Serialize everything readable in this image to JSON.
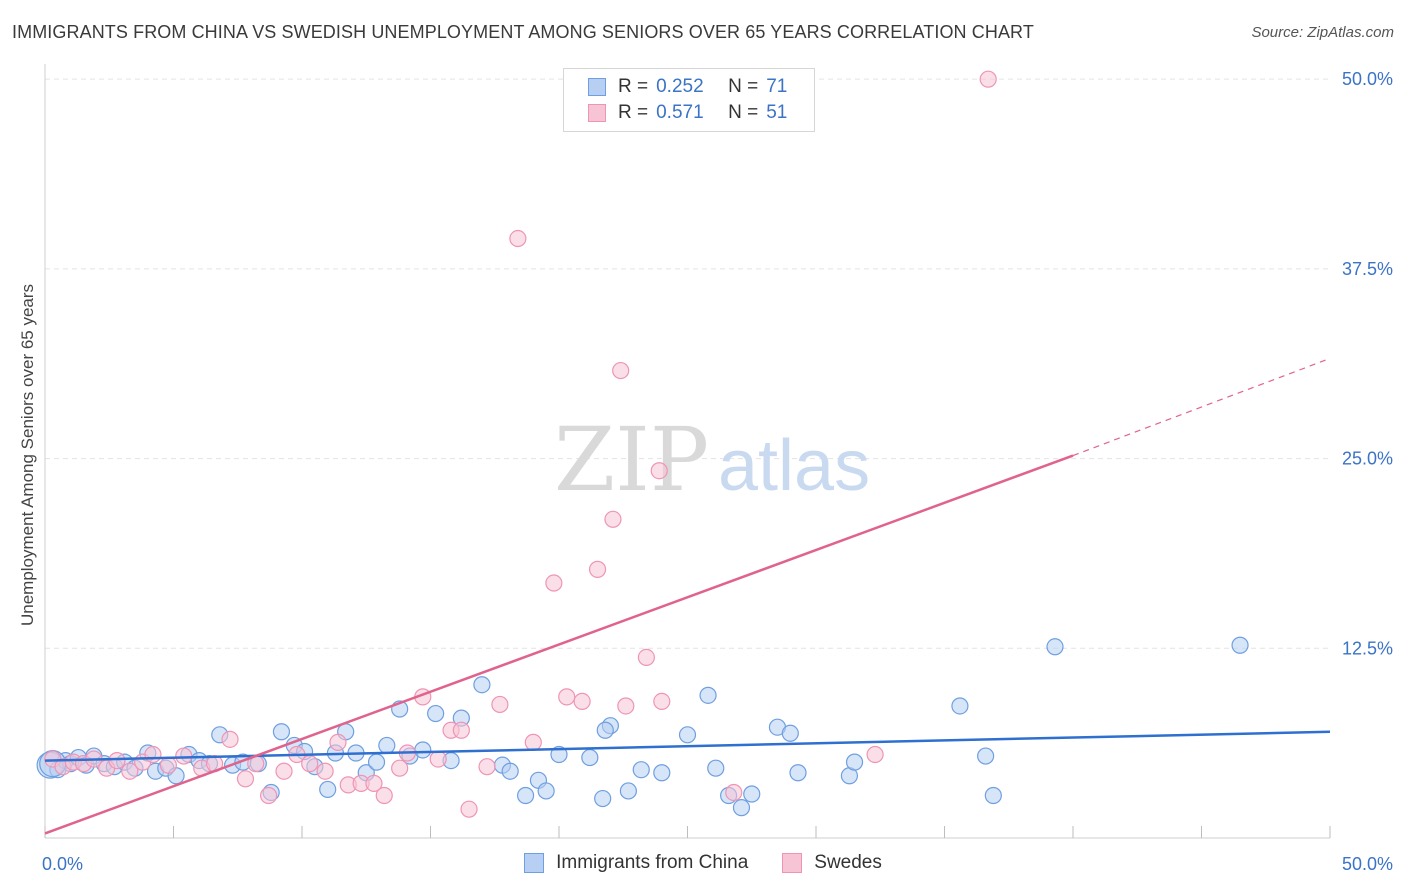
{
  "title": "IMMIGRANTS FROM CHINA VS SWEDISH UNEMPLOYMENT AMONG SENIORS OVER 65 YEARS CORRELATION CHART",
  "source": "Source: ZipAtlas.com",
  "watermark": {
    "zip": "ZIP",
    "atlas": "atlas"
  },
  "colors": {
    "blue": "#6f9fe0",
    "blue_fill": "#b7cff2",
    "blue_line": "#2f6fd0",
    "pink": "#ee95b5",
    "pink_fill": "#f7c4d5",
    "pink_line": "#e0638e",
    "tick": "#3b73c6",
    "grid": "#e3e3e3"
  },
  "legend": {
    "rows": [
      {
        "r_label": "R =",
        "r_value": "0.252",
        "n_label": "N =",
        "n_value": "71",
        "series": "blue"
      },
      {
        "r_label": "R =",
        "r_value": "0.571",
        "n_label": "N =",
        "n_value": "51",
        "series": "pink"
      }
    ]
  },
  "chart_data": {
    "type": "scatter",
    "title": "IMMIGRANTS FROM CHINA VS SWEDISH UNEMPLOYMENT AMONG SENIORS OVER 65 YEARS CORRELATION CHART",
    "xlabel": "",
    "ylabel": "Unemployment Among Seniors over 65 years",
    "xlim": [
      0,
      50
    ],
    "ylim": [
      0,
      51
    ],
    "x_tick_labels": [
      "0.0%",
      "50.0%"
    ],
    "y_ticks": [
      12.5,
      25,
      37.5,
      50
    ],
    "y_tick_labels": [
      "12.5%",
      "25.0%",
      "37.5%",
      "50.0%"
    ],
    "grid": true,
    "legend_position": "bottom-center",
    "series": [
      {
        "name": "Immigrants from China",
        "color": "blue",
        "trend": {
          "x": [
            0,
            50
          ],
          "y": [
            5.1,
            7.0
          ],
          "dashed_extension": false
        },
        "points": [
          [
            0.2,
            4.8
          ],
          [
            0.5,
            4.5
          ],
          [
            0.8,
            5.1
          ],
          [
            1.0,
            4.9
          ],
          [
            1.3,
            5.3
          ],
          [
            1.6,
            4.8
          ],
          [
            1.9,
            5.4
          ],
          [
            2.3,
            4.9
          ],
          [
            2.7,
            4.7
          ],
          [
            3.1,
            5.0
          ],
          [
            3.5,
            4.6
          ],
          [
            4.0,
            5.6
          ],
          [
            4.3,
            4.4
          ],
          [
            4.7,
            4.6
          ],
          [
            5.1,
            4.1
          ],
          [
            5.6,
            5.5
          ],
          [
            6.0,
            5.1
          ],
          [
            6.4,
            4.9
          ],
          [
            6.8,
            6.8
          ],
          [
            7.3,
            4.8
          ],
          [
            7.7,
            5.0
          ],
          [
            8.3,
            4.9
          ],
          [
            8.8,
            3.0
          ],
          [
            9.2,
            7.0
          ],
          [
            9.7,
            6.1
          ],
          [
            10.1,
            5.7
          ],
          [
            10.5,
            4.7
          ],
          [
            11.0,
            3.2
          ],
          [
            11.3,
            5.6
          ],
          [
            11.7,
            7.0
          ],
          [
            12.1,
            5.6
          ],
          [
            12.5,
            4.3
          ],
          [
            12.9,
            5.0
          ],
          [
            13.3,
            6.1
          ],
          [
            13.8,
            8.5
          ],
          [
            14.2,
            5.4
          ],
          [
            14.7,
            5.8
          ],
          [
            15.2,
            8.2
          ],
          [
            15.8,
            5.1
          ],
          [
            16.2,
            7.9
          ],
          [
            17.0,
            10.1
          ],
          [
            17.8,
            4.8
          ],
          [
            18.1,
            4.4
          ],
          [
            18.7,
            2.8
          ],
          [
            19.2,
            3.8
          ],
          [
            19.5,
            3.1
          ],
          [
            20.0,
            5.5
          ],
          [
            21.2,
            5.3
          ],
          [
            21.7,
            2.6
          ],
          [
            22.0,
            7.4
          ],
          [
            22.7,
            3.1
          ],
          [
            23.2,
            4.5
          ],
          [
            24.0,
            4.3
          ],
          [
            25.0,
            6.8
          ],
          [
            25.8,
            9.4
          ],
          [
            26.1,
            4.6
          ],
          [
            26.6,
            2.8
          ],
          [
            27.1,
            2.0
          ],
          [
            27.5,
            2.9
          ],
          [
            28.5,
            7.3
          ],
          [
            29.0,
            6.9
          ],
          [
            29.3,
            4.3
          ],
          [
            31.3,
            4.1
          ],
          [
            31.5,
            5.0
          ],
          [
            35.6,
            8.7
          ],
          [
            36.6,
            5.4
          ],
          [
            36.9,
            2.8
          ],
          [
            39.3,
            12.6
          ],
          [
            46.5,
            12.7
          ],
          [
            21.8,
            7.1
          ],
          [
            0.3,
            4.9
          ]
        ]
      },
      {
        "name": "Swedes",
        "color": "pink",
        "trend": {
          "x": [
            0,
            40
          ],
          "y": [
            0.3,
            25.2
          ],
          "dashed_extension": true,
          "extension_to": [
            50,
            31.6
          ]
        },
        "points": [
          [
            0.3,
            5.2
          ],
          [
            0.7,
            4.7
          ],
          [
            1.1,
            5.0
          ],
          [
            1.5,
            4.9
          ],
          [
            1.9,
            5.2
          ],
          [
            2.4,
            4.6
          ],
          [
            2.8,
            5.1
          ],
          [
            3.3,
            4.4
          ],
          [
            3.8,
            5.0
          ],
          [
            4.2,
            5.5
          ],
          [
            4.8,
            4.8
          ],
          [
            5.4,
            5.4
          ],
          [
            6.1,
            4.6
          ],
          [
            6.6,
            4.9
          ],
          [
            7.2,
            6.5
          ],
          [
            7.8,
            3.9
          ],
          [
            8.2,
            4.9
          ],
          [
            8.7,
            2.8
          ],
          [
            9.3,
            4.4
          ],
          [
            9.8,
            5.5
          ],
          [
            10.3,
            4.9
          ],
          [
            10.9,
            4.4
          ],
          [
            11.4,
            6.3
          ],
          [
            11.8,
            3.5
          ],
          [
            12.3,
            3.6
          ],
          [
            12.8,
            3.6
          ],
          [
            13.2,
            2.8
          ],
          [
            13.8,
            4.6
          ],
          [
            14.1,
            5.6
          ],
          [
            14.7,
            9.3
          ],
          [
            15.3,
            5.2
          ],
          [
            15.8,
            7.1
          ],
          [
            16.2,
            7.1
          ],
          [
            16.5,
            1.9
          ],
          [
            17.2,
            4.7
          ],
          [
            17.7,
            8.8
          ],
          [
            18.4,
            39.5
          ],
          [
            19.0,
            6.3
          ],
          [
            19.8,
            16.8
          ],
          [
            20.3,
            9.3
          ],
          [
            20.9,
            9.0
          ],
          [
            21.5,
            17.7
          ],
          [
            22.1,
            21.0
          ],
          [
            22.4,
            30.8
          ],
          [
            22.6,
            8.7
          ],
          [
            23.4,
            11.9
          ],
          [
            23.9,
            24.2
          ],
          [
            24.0,
            9.0
          ],
          [
            26.8,
            3.0
          ],
          [
            32.3,
            5.5
          ],
          [
            36.7,
            50.0
          ]
        ]
      }
    ]
  },
  "bottom_legend": [
    {
      "label": "Immigrants from China",
      "series": "blue"
    },
    {
      "label": "Swedes",
      "series": "pink"
    }
  ]
}
